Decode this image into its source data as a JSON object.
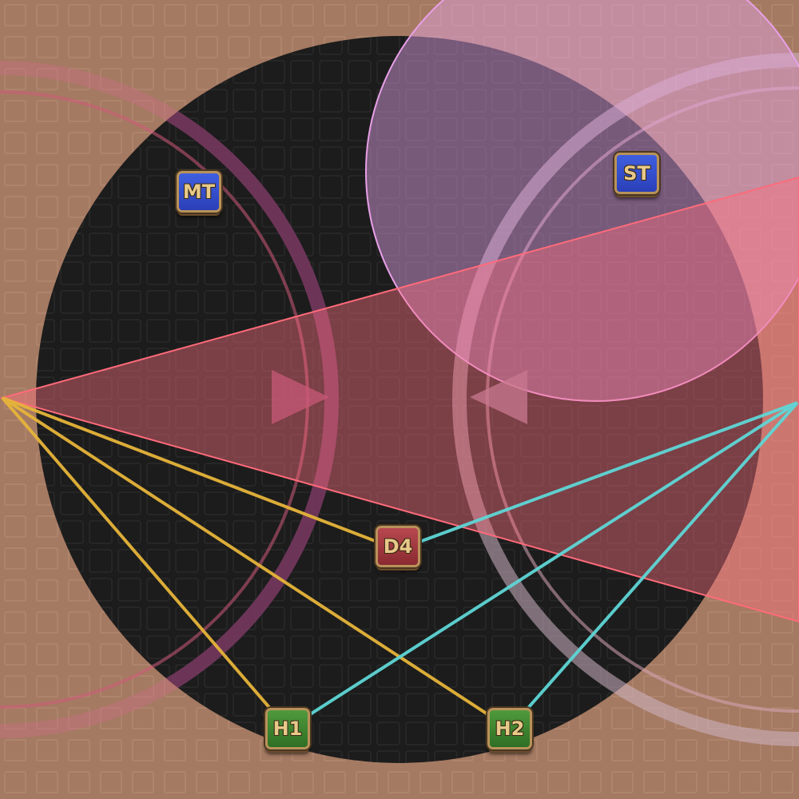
{
  "arena": {
    "floor_color": "#1c1c1c",
    "outer_color": "#a57a62"
  },
  "markers": [
    {
      "id": "mt",
      "label": "MT",
      "role": "tank"
    },
    {
      "id": "st",
      "label": "ST",
      "role": "tank"
    },
    {
      "id": "d4",
      "label": "D4",
      "role": "dps"
    },
    {
      "id": "h1",
      "label": "H1",
      "role": "healer"
    },
    {
      "id": "h2",
      "label": "H2",
      "role": "healer"
    }
  ],
  "colors": {
    "tank": "#2f4fd0",
    "healer": "#3f8a30",
    "dps": "#a8353d",
    "tether_left": "#e6b43a",
    "tether_right": "#5fd6d6",
    "cone": "#ff6b7a",
    "aoe_circle": "#e8a0e8",
    "ring_left": "#7a2a4a",
    "ring_right": "#b8a0b0"
  },
  "icons": [
    "arrow-right-icon",
    "arrow-left-icon"
  ]
}
